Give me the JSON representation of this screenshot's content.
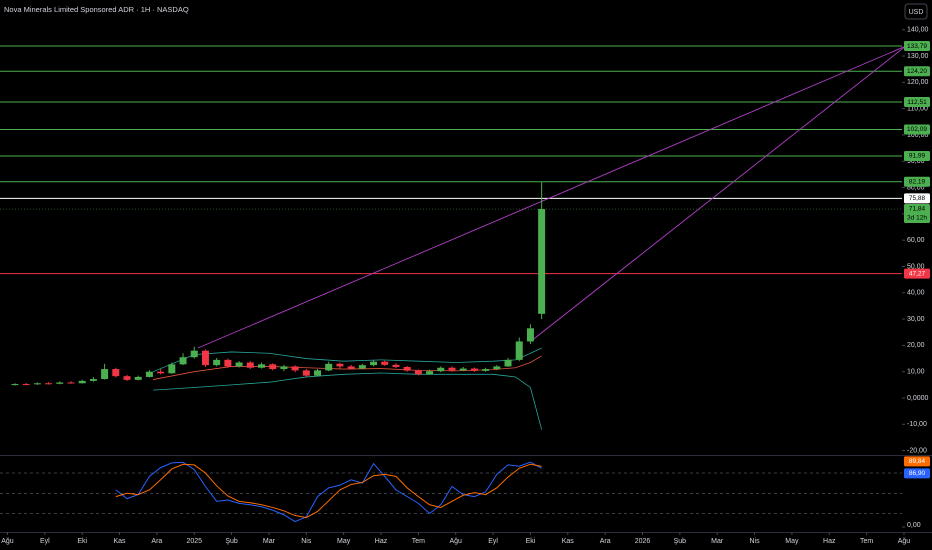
{
  "chart_data": {
    "type": "candlestick",
    "title": "Nova Minerals Limited Sponsored ADR · 1H · NASDAQ",
    "currency": "USD",
    "xlim": [
      -0.2,
      24.75
    ],
    "xticks": [
      {
        "value": 0,
        "label": "Ağu"
      },
      {
        "value": 1,
        "label": "Eyl"
      },
      {
        "value": 2,
        "label": "Eki"
      },
      {
        "value": 3,
        "label": "Kas"
      },
      {
        "value": 4,
        "label": "Ara"
      },
      {
        "value": 5,
        "label": "2025"
      },
      {
        "value": 6,
        "label": "Şub"
      },
      {
        "value": 7,
        "label": "Mar"
      },
      {
        "value": 8,
        "label": "Nis"
      },
      {
        "value": 9,
        "label": "May"
      },
      {
        "value": 10,
        "label": "Haz"
      },
      {
        "value": 11,
        "label": "Tem"
      },
      {
        "value": 12,
        "label": "Ağu"
      },
      {
        "value": 13,
        "label": "Eyl"
      },
      {
        "value": 14,
        "label": "Eki"
      },
      {
        "value": 15,
        "label": "Kas"
      },
      {
        "value": 16,
        "label": "Ara"
      },
      {
        "value": 17,
        "label": "2026"
      },
      {
        "value": 18,
        "label": "Şub"
      },
      {
        "value": 19,
        "label": "Mar"
      },
      {
        "value": 20,
        "label": "Nis"
      },
      {
        "value": 21,
        "label": "May"
      },
      {
        "value": 22,
        "label": "Haz"
      },
      {
        "value": 23,
        "label": "Tem"
      },
      {
        "value": 24,
        "label": "Ağu"
      }
    ],
    "ylim": [
      -21.67,
      151.3
    ],
    "yticks": [
      {
        "value": 140,
        "label": "140,00"
      },
      {
        "value": 130,
        "label": "130,00"
      },
      {
        "value": 120,
        "label": "120,00"
      },
      {
        "value": 110,
        "label": "110,00"
      },
      {
        "value": 100,
        "label": "100,00"
      },
      {
        "value": 90,
        "label": "90,00"
      },
      {
        "value": 80,
        "label": "80,00"
      },
      {
        "value": 70,
        "label": "70,00"
      },
      {
        "value": 60,
        "label": "60,00"
      },
      {
        "value": 50,
        "label": "50,00"
      },
      {
        "value": 40,
        "label": "40,00"
      },
      {
        "value": 30,
        "label": "30,00"
      },
      {
        "value": 20,
        "label": "20,00"
      },
      {
        "value": 10,
        "label": "10,00"
      },
      {
        "value": 0,
        "label": "0,0000"
      },
      {
        "value": -10,
        "label": "-10,00"
      },
      {
        "value": -20,
        "label": "-20,00"
      }
    ],
    "up_color": "#4caf50",
    "down_color": "#f23645",
    "candles": {
      "x": [
        0.2,
        0.5,
        0.8,
        1.1,
        1.4,
        1.7,
        2.0,
        2.3,
        2.6,
        2.9,
        3.2,
        3.5,
        3.8,
        4.1,
        4.4,
        4.7,
        5.0,
        5.3,
        5.6,
        5.9,
        6.2,
        6.5,
        6.8,
        7.1,
        7.4,
        7.7,
        8.0,
        8.3,
        8.6,
        8.9,
        9.2,
        9.5,
        9.8,
        10.1,
        10.4,
        10.7,
        11.0,
        11.3,
        11.6,
        11.9,
        12.2,
        12.5,
        12.8,
        13.1,
        13.4,
        13.7,
        14.0,
        14.3
      ],
      "open": [
        5.0,
        5.3,
        5.2,
        5.6,
        5.4,
        5.9,
        5.6,
        6.5,
        7.2,
        11.0,
        8.3,
        6.9,
        8.0,
        10.0,
        9.4,
        12.8,
        15.5,
        18.0,
        12.5,
        14.5,
        12.0,
        13.5,
        11.5,
        12.8,
        11.0,
        12.0,
        10.5,
        8.5,
        10.5,
        13.0,
        12.0,
        11.2,
        12.5,
        13.8,
        12.6,
        11.8,
        10.4,
        9.0,
        10.2,
        11.5,
        10.5,
        11.2,
        10.3,
        11.0,
        12.0,
        14.5,
        21.5,
        32.0
      ],
      "high": [
        5.6,
        5.7,
        5.9,
        6.0,
        6.3,
        6.4,
        7.0,
        8.0,
        13.0,
        11.5,
        8.8,
        8.5,
        10.6,
        11.0,
        13.5,
        17.0,
        19.5,
        18.5,
        15.2,
        15.0,
        14.0,
        14.0,
        13.5,
        13.2,
        12.6,
        12.4,
        11.0,
        11.0,
        13.8,
        13.5,
        12.6,
        13.0,
        14.5,
        14.2,
        13.2,
        12.2,
        10.8,
        10.8,
        12.0,
        12.0,
        11.8,
        11.6,
        11.5,
        12.5,
        15.2,
        23.0,
        28.0,
        82.0
      ],
      "low": [
        4.7,
        4.9,
        5.0,
        5.1,
        5.2,
        5.4,
        5.5,
        6.2,
        7.0,
        7.8,
        6.5,
        6.7,
        7.8,
        9.0,
        9.2,
        12.5,
        15.0,
        11.8,
        12.0,
        11.5,
        11.6,
        11.0,
        11.2,
        10.5,
        10.2,
        9.8,
        8.0,
        8.2,
        10.2,
        11.2,
        10.8,
        10.9,
        12.0,
        12.2,
        11.4,
        10.0,
        8.6,
        8.8,
        9.8,
        10.0,
        10.2,
        9.9,
        10.0,
        10.6,
        11.8,
        14.0,
        20.5,
        30.0
      ],
      "close": [
        5.3,
        5.2,
        5.6,
        5.4,
        5.9,
        5.6,
        6.5,
        7.2,
        11.0,
        8.3,
        6.9,
        8.0,
        10.0,
        9.4,
        12.8,
        15.5,
        18.0,
        12.5,
        14.5,
        12.0,
        13.5,
        11.5,
        12.8,
        11.0,
        12.0,
        10.5,
        8.5,
        10.5,
        13.0,
        12.0,
        11.2,
        12.5,
        13.8,
        12.6,
        11.8,
        10.4,
        9.0,
        10.2,
        11.5,
        10.5,
        11.2,
        10.3,
        11.0,
        12.0,
        14.5,
        21.5,
        26.5,
        71.84
      ]
    },
    "bands": {
      "x": [
        3.9,
        5.0,
        6.0,
        7.0,
        8.0,
        9.0,
        10.0,
        11.0,
        12.0,
        13.0,
        13.6,
        14.0,
        14.3
      ],
      "series": [
        {
          "color": "#26a69a",
          "values": [
            10,
            16.5,
            17.5,
            17,
            15,
            14,
            14.5,
            14,
            13.5,
            14,
            14.5,
            17,
            19
          ]
        },
        {
          "color": "#e0533a",
          "values": [
            7,
            10,
            12,
            12,
            11.5,
            11,
            11.2,
            10.5,
            10.3,
            10.8,
            11.5,
            13.5,
            16
          ]
        },
        {
          "color": "#26a69a",
          "values": [
            3,
            4,
            5,
            6,
            8,
            9,
            9.5,
            9,
            9,
            9,
            8,
            4,
            -12
          ]
        }
      ]
    },
    "trendlines": [
      {
        "color": "#b03fc6",
        "x": [
          5.1,
          24.05
        ],
        "y": [
          19,
          133.79
        ]
      },
      {
        "color": "#b03fc6",
        "x": [
          14.05,
          24.05
        ],
        "y": [
          22,
          133.79
        ]
      }
    ],
    "horizontal_lines": {
      "values": [
        133.79,
        124.2,
        112.51,
        102.09,
        91.99,
        82.19,
        75.88,
        47.27
      ],
      "value_labels": [
        "133,79",
        "124,20",
        "112,51",
        "102,09",
        "91,99",
        "82,19",
        "75,88",
        "47,27"
      ],
      "colors": [
        "#4caf50",
        "#4caf50",
        "#4caf50",
        "#4caf50",
        "#4caf50",
        "#4caf50",
        "#ffffff",
        "#f23645"
      ]
    },
    "last_price": {
      "value": 71.84,
      "label": "71,84",
      "countdown": "3d 12h",
      "color": "#4caf50"
    },
    "oscillator": {
      "ylim": [
        -7.4,
        105.2
      ],
      "yticks": [
        {
          "value": 0,
          "label": "0,00"
        }
      ],
      "levels": [
        80,
        50,
        20
      ],
      "x": [
        2.9,
        3.2,
        3.5,
        3.8,
        4.1,
        4.4,
        4.7,
        5.0,
        5.3,
        5.6,
        5.9,
        6.2,
        6.5,
        6.8,
        7.1,
        7.4,
        7.7,
        8.0,
        8.3,
        8.6,
        8.9,
        9.2,
        9.5,
        9.8,
        10.1,
        10.4,
        10.7,
        11.0,
        11.3,
        11.6,
        11.9,
        12.2,
        12.5,
        12.8,
        13.1,
        13.4,
        13.7,
        14.0,
        14.3
      ],
      "series": [
        {
          "color": "#2962ff",
          "values": [
            55,
            42,
            48,
            75,
            88,
            95,
            96,
            85,
            60,
            38,
            40,
            35,
            33,
            30,
            25,
            18,
            8,
            15,
            45,
            58,
            62,
            70,
            65,
            94,
            75,
            55,
            45,
            35,
            20,
            33,
            60,
            48,
            45,
            52,
            78,
            92,
            90,
            96,
            86.9
          ],
          "last_label": "86,90"
        },
        {
          "color": "#ff6d00",
          "values": [
            45,
            50,
            48,
            55,
            70,
            86,
            93,
            92,
            80,
            61,
            46,
            38,
            36,
            33,
            29,
            24,
            17,
            14,
            23,
            39,
            55,
            63,
            66,
            76,
            78,
            75,
            58,
            45,
            33,
            29,
            38,
            47,
            51,
            48,
            58,
            74,
            87,
            93,
            89.84
          ],
          "last_label": "89,84"
        }
      ]
    }
  }
}
